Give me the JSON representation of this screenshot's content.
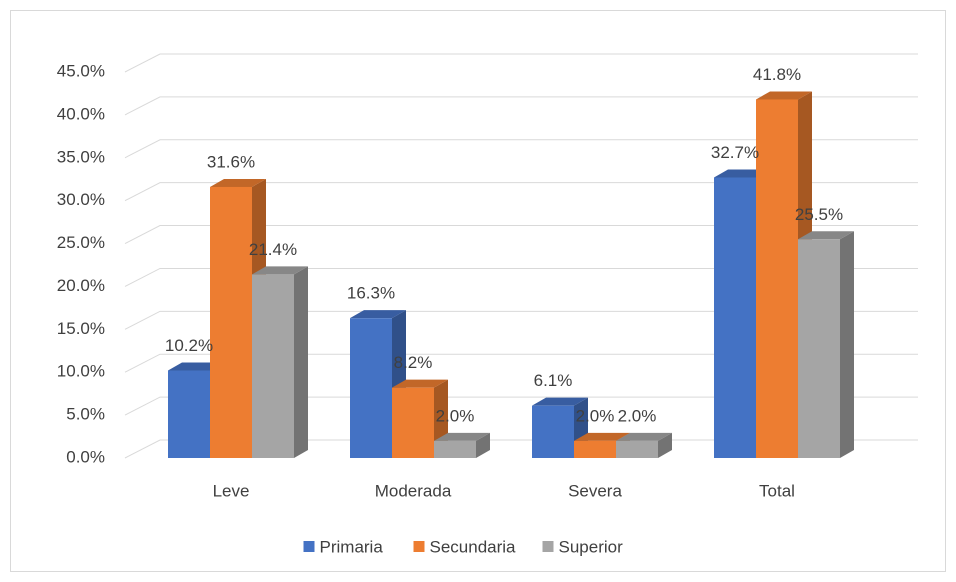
{
  "chart_data": {
    "type": "bar3d",
    "categories": [
      "Leve",
      "Moderada",
      "Severa",
      "Total"
    ],
    "series": [
      {
        "name": "Primaria",
        "color": "#4472c4",
        "values": [
          10.2,
          16.3,
          6.1,
          32.7
        ],
        "value_labels": [
          "10.2%",
          "16.3%",
          "6.1%",
          "32.7%"
        ]
      },
      {
        "name": "Secundaria",
        "color": "#ed7d31",
        "values": [
          31.6,
          8.2,
          2.0,
          41.8
        ],
        "value_labels": [
          "31.6%",
          "8.2%",
          "2.0%",
          "41.8%"
        ]
      },
      {
        "name": "Superior",
        "color": "#a5a5a5",
        "values": [
          21.4,
          2.0,
          2.0,
          25.5
        ],
        "value_labels": [
          "21.4%",
          "2.0%",
          "2.0%",
          "25.5%"
        ]
      }
    ],
    "ylim": [
      0,
      45
    ],
    "yticks": [
      {
        "value": 0,
        "label": "0.0%"
      },
      {
        "value": 5,
        "label": "5.0%"
      },
      {
        "value": 10,
        "label": "10.0%"
      },
      {
        "value": 15,
        "label": "15.0%"
      },
      {
        "value": 20,
        "label": "20.0%"
      },
      {
        "value": 25,
        "label": "25.0%"
      },
      {
        "value": 30,
        "label": "30.0%"
      },
      {
        "value": 35,
        "label": "35.0%"
      },
      {
        "value": 40,
        "label": "40.0%"
      },
      {
        "value": 45,
        "label": "45.0%"
      }
    ],
    "grid": true,
    "legend": "bottom"
  }
}
